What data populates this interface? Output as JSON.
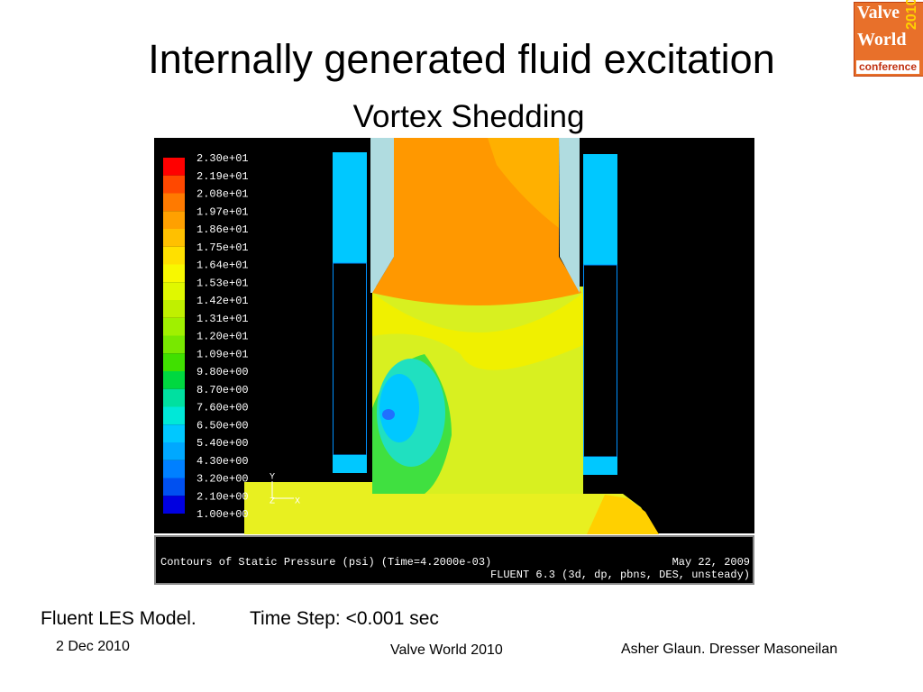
{
  "slide": {
    "title": "Internally generated fluid excitation",
    "subtitle": "Vortex Shedding",
    "logo": {
      "line1": "Valve",
      "line2": "World",
      "year": "2010",
      "tag": "conference"
    },
    "figure": {
      "legend": {
        "labels": [
          "2.30e+01",
          "2.19e+01",
          "2.08e+01",
          "1.97e+01",
          "1.86e+01",
          "1.75e+01",
          "1.64e+01",
          "1.53e+01",
          "1.42e+01",
          "1.31e+01",
          "1.20e+01",
          "1.09e+01",
          "9.80e+00",
          "8.70e+00",
          "7.60e+00",
          "6.50e+00",
          "5.40e+00",
          "4.30e+00",
          "3.20e+00",
          "2.10e+00",
          "1.00e+00"
        ],
        "colors": [
          "#ff0000",
          "#ff4800",
          "#ff7a00",
          "#ffa000",
          "#ffc000",
          "#ffe000",
          "#f8f800",
          "#e0f800",
          "#c0f000",
          "#a0f000",
          "#78e800",
          "#40e000",
          "#00d840",
          "#00e0a0",
          "#00e8d8",
          "#00c8ff",
          "#00a8ff",
          "#0080ff",
          "#0050f0",
          "#0000e0"
        ]
      },
      "axes": {
        "y": "Y",
        "z": "Z",
        "x": "X"
      },
      "caption_left": "Contours of Static Pressure (psi)  (Time=4.2000e-03)",
      "date": "May 22, 2009",
      "solver": "FLUENT 6.3 (3d, dp, pbns, DES, unsteady)"
    },
    "notes": {
      "model": "Fluent LES Model.",
      "timestep": "Time Step: <0.001 sec"
    },
    "footer": {
      "date": "2 Dec 2010",
      "event": "Valve World 2010",
      "author": "Asher Glaun. Dresser Masoneilan"
    }
  }
}
